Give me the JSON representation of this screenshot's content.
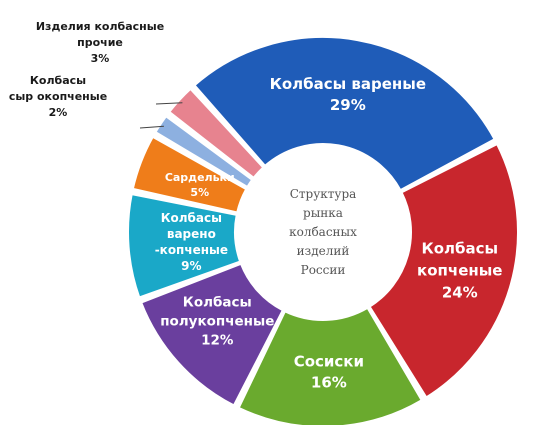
{
  "chart_data": {
    "type": "pie",
    "title": "Структура рынка колбасных изделий России",
    "title_lines": [
      "Структура",
      "рынка",
      "колбасных",
      "изделий",
      "России"
    ],
    "slices": [
      {
        "name": "Колбасы вареные",
        "value": 29,
        "pct_label": "29%",
        "lines": [
          "Колбасы вареные",
          "29%"
        ],
        "color": "#1f5cb8",
        "label_outside": false
      },
      {
        "name": "Колбасы копченые",
        "value": 24,
        "pct_label": "24%",
        "lines": [
          "Колбасы",
          "копченые",
          "24%"
        ],
        "color": "#c8262d",
        "label_outside": false
      },
      {
        "name": "Сосиски",
        "value": 16,
        "pct_label": "16%",
        "lines": [
          "Сосиски",
          "16%"
        ],
        "color": "#6aaa2e",
        "label_outside": false
      },
      {
        "name": "Колбасы полукопченые",
        "value": 12,
        "pct_label": "12%",
        "lines": [
          "Колбасы",
          "полукопченые",
          "12%"
        ],
        "color": "#6a3f9e",
        "label_outside": false
      },
      {
        "name": "Колбасы варено-копченые",
        "value": 9,
        "pct_label": "9%",
        "lines": [
          "Колбасы",
          "варено",
          "-копченые",
          "9%"
        ],
        "color": "#1aa8c8",
        "label_outside": false
      },
      {
        "name": "Сардельки",
        "value": 5,
        "pct_label": "5%",
        "lines": [
          "Сардельки",
          "5%"
        ],
        "color": "#ef7d1a",
        "label_outside": false
      },
      {
        "name": "Колбасы сырокопченые",
        "value": 2,
        "pct_label": "2%",
        "lines": [
          "Колбасы",
          "сыр окопченые",
          "2%"
        ],
        "color": "#8db0e0",
        "label_outside": true
      },
      {
        "name": "Изделия колбасные прочие",
        "value": 3,
        "pct_label": "3%",
        "lines": [
          "Изделия колбасные",
          "прочие",
          "3%"
        ],
        "color": "#e7838f",
        "label_outside": true
      }
    ]
  }
}
